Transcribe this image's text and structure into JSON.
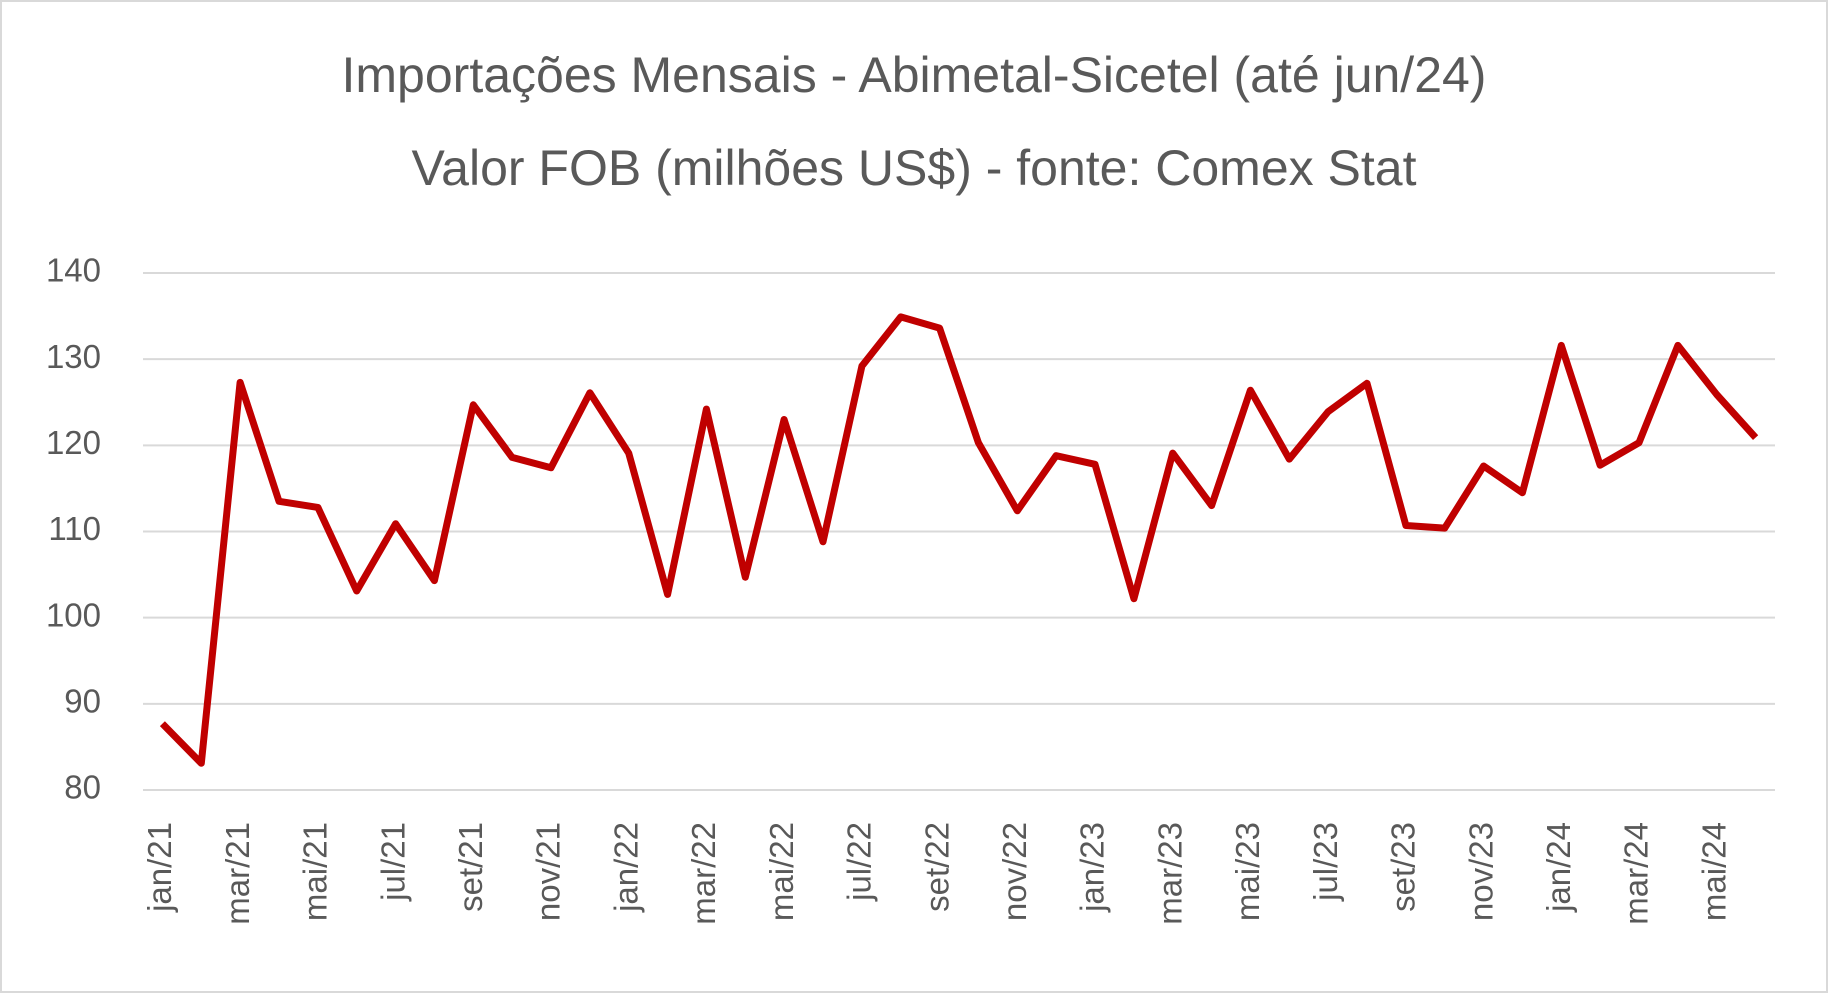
{
  "chart_data": {
    "type": "line",
    "title": "Importações Mensais - Abimetal-Sicetel (até jun/24)",
    "subtitle": "Valor FOB (milhões US$) - fonte: Comex Stat",
    "categories": [
      "jan/21",
      null,
      "mar/21",
      null,
      "mai/21",
      null,
      "jul/21",
      null,
      "set/21",
      null,
      "nov/21",
      null,
      "jan/22",
      null,
      "mar/22",
      null,
      "mai/22",
      null,
      "jul/22",
      null,
      "set/22",
      null,
      "nov/22",
      null,
      "jan/23",
      null,
      "mar/23",
      null,
      "mai/23",
      null,
      "jul/23",
      null,
      "set/23",
      null,
      "nov/23",
      null,
      "jan/24",
      null,
      "mar/24",
      null,
      "mai/24",
      null
    ],
    "values": [
      87.7,
      83.1,
      127.3,
      113.5,
      112.8,
      103.1,
      110.9,
      104.3,
      124.7,
      118.6,
      117.4,
      126.1,
      119.1,
      102.7,
      124.2,
      104.7,
      123,
      108.8,
      129.2,
      134.9,
      133.6,
      120.3,
      112.4,
      118.8,
      117.8,
      102.2,
      119.1,
      113,
      126.4,
      118.4,
      123.9,
      127.2,
      110.7,
      110.4,
      117.6,
      114.5,
      131.6,
      117.7,
      120.3,
      131.6,
      125.9,
      120.9
    ],
    "color": "#c00000",
    "ylim": [
      80,
      140
    ],
    "yticks": [
      80,
      90,
      100,
      110,
      120,
      130,
      140
    ],
    "grid": true
  }
}
